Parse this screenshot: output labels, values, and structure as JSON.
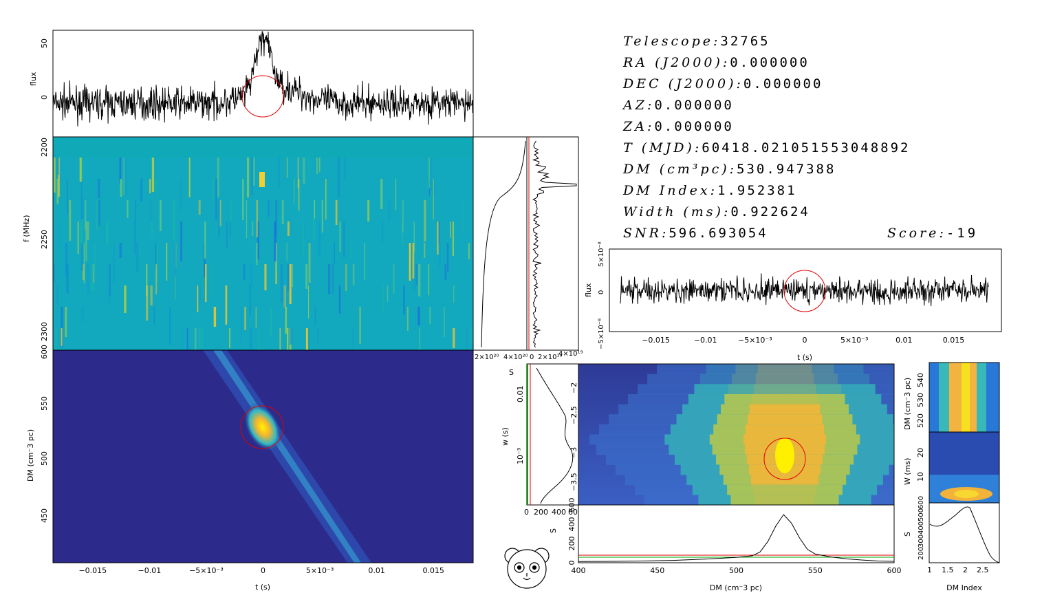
{
  "info": {
    "telescope": {
      "label": "Telescope",
      "value": "32765"
    },
    "ra": {
      "label": "RA (J2000)",
      "value": "0.000000"
    },
    "dec": {
      "label": "DEC (J2000)",
      "value": "0.000000"
    },
    "az": {
      "label": "AZ",
      "value": "0.000000"
    },
    "za": {
      "label": "ZA",
      "value": "0.000000"
    },
    "mjd": {
      "label": "T (MJD)",
      "value": "60418.021051553048892"
    },
    "dm": {
      "label": "DM (cm³pc)",
      "value": "530.947388"
    },
    "dm_index": {
      "label": "DM Index",
      "value": "1.952381"
    },
    "width": {
      "label": "Width (ms)",
      "value": "0.922624"
    },
    "snr": {
      "label": "SNR",
      "value": "596.693054"
    },
    "score": {
      "label": "Score",
      "value": "-19"
    }
  },
  "colors": {
    "burst_circle": "#e00000",
    "trace": "#000000",
    "dynspec_bg": "#12a8bd",
    "dm_map_bg": "#2c2a8a",
    "marker_green": "#00a000",
    "marker_red": "#e00000"
  },
  "icon": "panda-logo-icon",
  "chart_data": [
    {
      "id": "flux-profile",
      "type": "line",
      "ylabel": "flux",
      "yticks": [
        "50",
        "0"
      ],
      "ylim": [
        -30,
        65
      ],
      "xlim": [
        -0.0185,
        0.0185
      ],
      "peak": {
        "t": 0.0,
        "flux": 62
      }
    },
    {
      "id": "dynamic-spectrum",
      "type": "heatmap",
      "ylabel": "f (MHz)",
      "yticks": [
        "2200",
        "2250",
        "2300"
      ],
      "ylim": [
        2190,
        2305
      ]
    },
    {
      "id": "dm-time",
      "type": "heatmap",
      "ylabel": "DM (cm⁻3 pc)",
      "xlabel": "t (s)",
      "yticks": [
        "600",
        "550",
        "500",
        "450"
      ],
      "xticks": [
        "−0.015",
        "−0.01",
        "−5×10⁻³",
        "0",
        "5×10⁻³",
        "0.01",
        "0.015"
      ],
      "xlim": [
        -0.0185,
        0.0185
      ],
      "ylim": [
        405,
        600
      ],
      "peak": {
        "t": 0.0,
        "dm": 530.9
      }
    },
    {
      "id": "spectrum-sidebars",
      "type": "line",
      "xticks_left": [
        "2×10²⁰",
        "4×10²⁰"
      ],
      "xticks_right": [
        "0",
        "2×10¹⁹",
        "4×10¹⁹"
      ]
    },
    {
      "id": "dedispersed-flux",
      "type": "line",
      "ylabel": "flux",
      "xlabel": "t (s)",
      "yticks": [
        "5×10⁻⁸",
        "0",
        "−5×10⁻⁸"
      ],
      "xticks": [
        "−0.015",
        "−0.01",
        "−5×10⁻³",
        "0",
        "5×10⁻³",
        "0.01",
        "0.015"
      ],
      "xlim": [
        -0.0185,
        0.0185
      ]
    },
    {
      "id": "width-snr",
      "type": "line",
      "xlabel": "S",
      "ylabel": "w (s)",
      "xticks": [
        "0",
        "200",
        "400",
        "600"
      ],
      "yticks": [
        "0.01",
        "10⁻³"
      ],
      "xlim": [
        0,
        600
      ]
    },
    {
      "id": "dm-width",
      "type": "heatmap",
      "yticks": [
        "−2",
        "−2.5",
        "−3",
        "−3.5"
      ],
      "ylim": [
        -3.8,
        -1.6
      ],
      "peak": {
        "dm": 530.9,
        "logw": -3.0
      }
    },
    {
      "id": "dm-snr",
      "type": "line",
      "xlabel": "DM (cm⁻3 pc)",
      "ylabel": "S",
      "xticks": [
        "400",
        "450",
        "500",
        "550",
        "600"
      ],
      "yticks": [
        "0",
        "200",
        "400",
        "600"
      ],
      "xlim": [
        400,
        600
      ],
      "ylim": [
        0,
        600
      ],
      "x": [
        400,
        420,
        440,
        460,
        480,
        500,
        510,
        515,
        520,
        525,
        530,
        535,
        540,
        545,
        550,
        560,
        570,
        580,
        590,
        600
      ],
      "y": [
        12,
        14,
        18,
        24,
        38,
        55,
        72,
        110,
        220,
        380,
        500,
        410,
        260,
        140,
        90,
        60,
        40,
        28,
        18,
        14
      ]
    },
    {
      "id": "index-dm",
      "type": "heatmap",
      "ylabel": "DM (cm⁻3 pc)",
      "yticks": [
        "520",
        "530",
        "540"
      ]
    },
    {
      "id": "index-width",
      "type": "heatmap",
      "ylabel": "W (ms)",
      "yticks": [
        "10",
        "20"
      ]
    },
    {
      "id": "index-snr",
      "type": "line",
      "xlabel": "DM Index",
      "ylabel": "S",
      "xticks": [
        "1",
        "1.5",
        "2",
        "2.5"
      ],
      "yticks": [
        "200",
        "300",
        "400",
        "500",
        "600"
      ],
      "xlim": [
        1,
        2.9
      ]
    }
  ]
}
